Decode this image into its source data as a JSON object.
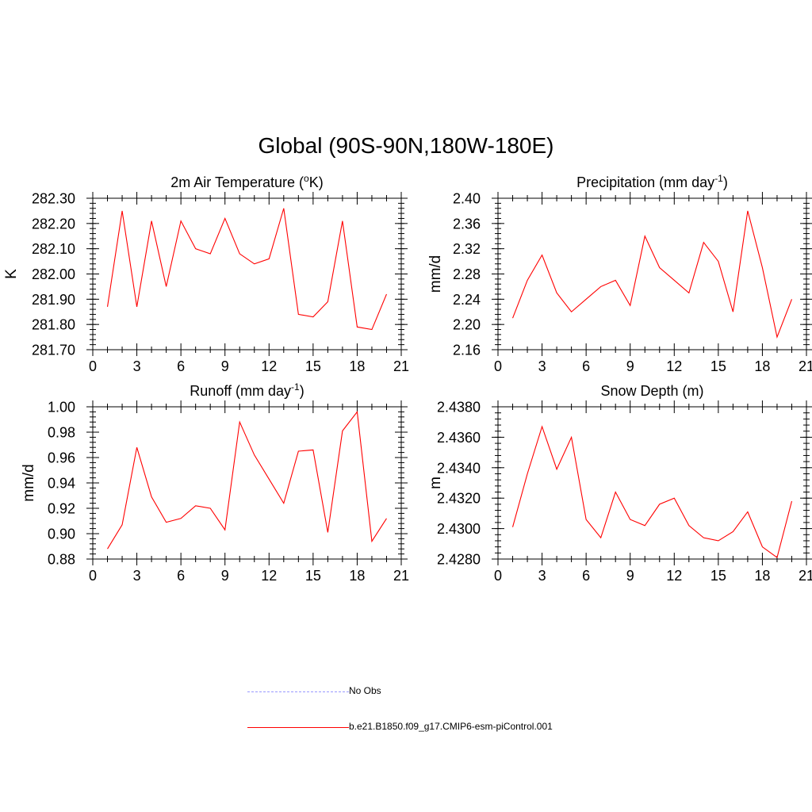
{
  "figure_title": "Global (90S-90N,180W-180E)",
  "colors": {
    "model": "#ff0000",
    "obs": "#9999ff",
    "axes": "#000000"
  },
  "legend": [
    {
      "label": "No Obs",
      "style": "dashed",
      "color": "#9999ff"
    },
    {
      "label": "b.e21.B1850.f09_g17.CMIP6-esm-piControl.001",
      "style": "solid",
      "color": "#ff0000"
    }
  ],
  "chart_data": [
    {
      "type": "line",
      "title": "2m Air Temperature (",
      "title_sup": "o",
      "title_after": "K)",
      "ylabel": "K",
      "xlim": [
        0,
        21
      ],
      "xticks": [
        0,
        3,
        6,
        9,
        12,
        15,
        18,
        21
      ],
      "ylim": [
        281.7,
        282.3
      ],
      "yticks": [
        "281.70",
        "281.80",
        "281.90",
        "282.00",
        "282.10",
        "282.20",
        "282.30"
      ],
      "ytick_values": [
        281.7,
        281.8,
        281.9,
        282.0,
        282.1,
        282.2,
        282.3
      ],
      "yminor": 0.02,
      "x": [
        1,
        2,
        3,
        4,
        5,
        6,
        7,
        8,
        9,
        10,
        11,
        12,
        13,
        14,
        15,
        16,
        17,
        18,
        19,
        20
      ],
      "series": [
        {
          "values": [
            281.87,
            282.25,
            281.87,
            282.21,
            281.95,
            282.21,
            282.1,
            282.08,
            282.22,
            282.08,
            282.04,
            282.06,
            282.26,
            281.84,
            281.83,
            281.89,
            282.21,
            281.79,
            281.78,
            281.92
          ]
        }
      ]
    },
    {
      "type": "line",
      "title": "Precipitation (mm day",
      "title_sup": "-1",
      "title_after": ")",
      "ylabel": "mm/d",
      "xlim": [
        0,
        21
      ],
      "xticks": [
        0,
        3,
        6,
        9,
        12,
        15,
        18,
        21
      ],
      "ylim": [
        2.16,
        2.4
      ],
      "yticks": [
        "2.16",
        "2.20",
        "2.24",
        "2.28",
        "2.32",
        "2.36",
        "2.40"
      ],
      "ytick_values": [
        2.16,
        2.2,
        2.24,
        2.28,
        2.32,
        2.36,
        2.4
      ],
      "yminor": 0.008,
      "x": [
        1,
        2,
        3,
        4,
        5,
        6,
        7,
        8,
        9,
        10,
        11,
        12,
        13,
        14,
        15,
        16,
        17,
        18,
        19,
        20
      ],
      "series": [
        {
          "values": [
            2.21,
            2.27,
            2.31,
            2.25,
            2.22,
            2.24,
            2.26,
            2.27,
            2.23,
            2.34,
            2.29,
            2.27,
            2.25,
            2.33,
            2.3,
            2.22,
            2.38,
            2.29,
            2.18,
            2.24
          ]
        }
      ]
    },
    {
      "type": "line",
      "title": "Runoff (mm day",
      "title_sup": "-1",
      "title_after": ")",
      "ylabel": "mm/d",
      "xlim": [
        0,
        21
      ],
      "xticks": [
        0,
        3,
        6,
        9,
        12,
        15,
        18,
        21
      ],
      "ylim": [
        0.88,
        1.0
      ],
      "yticks": [
        "0.88",
        "0.90",
        "0.92",
        "0.94",
        "0.96",
        "0.98",
        "1.00"
      ],
      "ytick_values": [
        0.88,
        0.9,
        0.92,
        0.94,
        0.96,
        0.98,
        1.0
      ],
      "yminor": 0.004,
      "x": [
        1,
        2,
        3,
        4,
        5,
        6,
        7,
        8,
        9,
        10,
        11,
        12,
        13,
        14,
        15,
        16,
        17,
        18,
        19,
        20
      ],
      "series": [
        {
          "values": [
            0.888,
            0.907,
            0.968,
            0.929,
            0.909,
            0.912,
            0.922,
            0.92,
            0.903,
            0.988,
            0.962,
            0.943,
            0.924,
            0.965,
            0.966,
            0.901,
            0.981,
            0.996,
            0.894,
            0.912
          ]
        }
      ]
    },
    {
      "type": "line",
      "title": "Snow Depth (m)",
      "title_sup": "",
      "title_after": "",
      "ylabel": "m",
      "xlim": [
        0,
        21
      ],
      "xticks": [
        0,
        3,
        6,
        9,
        12,
        15,
        18,
        21
      ],
      "ylim": [
        2.428,
        2.438
      ],
      "yticks": [
        "2.4280",
        "2.4300",
        "2.4320",
        "2.4340",
        "2.4360",
        "2.4380"
      ],
      "ytick_values": [
        2.428,
        2.43,
        2.432,
        2.434,
        2.436,
        2.438
      ],
      "yminor": 0.0004,
      "x": [
        1,
        2,
        3,
        4,
        5,
        6,
        7,
        8,
        9,
        10,
        11,
        12,
        13,
        14,
        15,
        16,
        17,
        18,
        19,
        20
      ],
      "series": [
        {
          "values": [
            2.4301,
            2.4336,
            2.4367,
            2.4339,
            2.436,
            2.4306,
            2.4294,
            2.4324,
            2.4306,
            2.4302,
            2.4316,
            2.432,
            2.4302,
            2.4294,
            2.4292,
            2.4298,
            2.4311,
            2.4288,
            2.4281,
            2.4318
          ]
        }
      ]
    }
  ]
}
